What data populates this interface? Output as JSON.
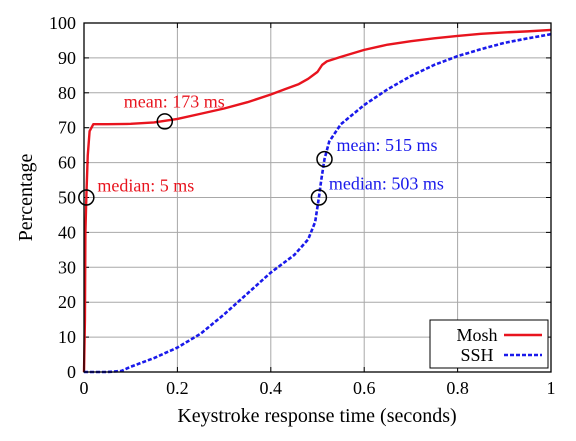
{
  "chart_data": {
    "type": "line",
    "title": "",
    "xlabel": "Keystroke response time (seconds)",
    "ylabel": "Percentage",
    "xlim": [
      0,
      1
    ],
    "ylim": [
      0,
      100
    ],
    "xticks": [
      0,
      0.2,
      0.4,
      0.6,
      0.8,
      1
    ],
    "xtick_labels": [
      "0",
      "0.2",
      "0.4",
      "0.6",
      "0.8",
      "1"
    ],
    "yticks": [
      0,
      10,
      20,
      30,
      40,
      50,
      60,
      70,
      80,
      90,
      100
    ],
    "ytick_labels": [
      "0",
      "10",
      "20",
      "30",
      "40",
      "50",
      "60",
      "70",
      "80",
      "90",
      "100"
    ],
    "grid": true,
    "legend_position": "bottom-right",
    "series": [
      {
        "name": "Mosh",
        "color": "#e8141e",
        "style": "solid",
        "points": [
          [
            0,
            0
          ],
          [
            0.002,
            15
          ],
          [
            0.003,
            40
          ],
          [
            0.005,
            50
          ],
          [
            0.008,
            62
          ],
          [
            0.012,
            69
          ],
          [
            0.02,
            71
          ],
          [
            0.05,
            71
          ],
          [
            0.1,
            71.1
          ],
          [
            0.15,
            71.5
          ],
          [
            0.2,
            72.5
          ],
          [
            0.25,
            74
          ],
          [
            0.3,
            75.5
          ],
          [
            0.35,
            77.3
          ],
          [
            0.4,
            79.5
          ],
          [
            0.43,
            81
          ],
          [
            0.46,
            82.5
          ],
          [
            0.48,
            84
          ],
          [
            0.5,
            86
          ],
          [
            0.51,
            88
          ],
          [
            0.52,
            89
          ],
          [
            0.55,
            90.3
          ],
          [
            0.6,
            92.3
          ],
          [
            0.65,
            93.8
          ],
          [
            0.7,
            94.8
          ],
          [
            0.75,
            95.6
          ],
          [
            0.8,
            96.3
          ],
          [
            0.85,
            96.9
          ],
          [
            0.9,
            97.3
          ],
          [
            0.95,
            97.6
          ],
          [
            1.0,
            98
          ]
        ]
      },
      {
        "name": "SSH",
        "color": "#1a1aeb",
        "style": "dashed",
        "points": [
          [
            0,
            0
          ],
          [
            0.05,
            0
          ],
          [
            0.08,
            0.3
          ],
          [
            0.1,
            1.5
          ],
          [
            0.15,
            4
          ],
          [
            0.2,
            7
          ],
          [
            0.25,
            11
          ],
          [
            0.3,
            16.5
          ],
          [
            0.35,
            22.5
          ],
          [
            0.4,
            28.5
          ],
          [
            0.45,
            33.5
          ],
          [
            0.48,
            38
          ],
          [
            0.495,
            43
          ],
          [
            0.503,
            50
          ],
          [
            0.508,
            55
          ],
          [
            0.515,
            61
          ],
          [
            0.525,
            66
          ],
          [
            0.55,
            71
          ],
          [
            0.6,
            76.5
          ],
          [
            0.65,
            81
          ],
          [
            0.7,
            84.8
          ],
          [
            0.75,
            88
          ],
          [
            0.8,
            90.5
          ],
          [
            0.85,
            92.5
          ],
          [
            0.9,
            94.3
          ],
          [
            0.95,
            95.6
          ],
          [
            1.0,
            96.8
          ]
        ]
      }
    ],
    "annotations": [
      {
        "text": "mean: 173 ms",
        "x": 0.173,
        "y": 71.8,
        "series": "Mosh"
      },
      {
        "text": "median: 5 ms",
        "x": 0.005,
        "y": 50,
        "series": "Mosh"
      },
      {
        "text": "mean: 515 ms",
        "x": 0.515,
        "y": 61,
        "series": "SSH"
      },
      {
        "text": "median: 503 ms",
        "x": 0.503,
        "y": 50,
        "series": "SSH"
      }
    ]
  }
}
